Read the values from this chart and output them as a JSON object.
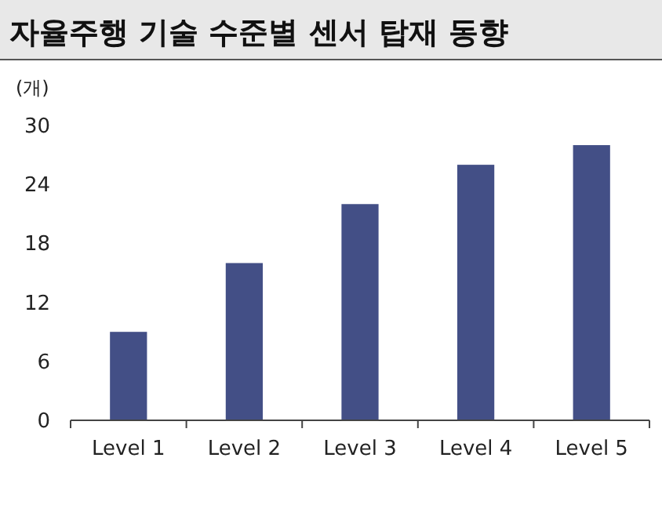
{
  "chart_data": {
    "type": "bar",
    "title": "자율주행 기술 수준별 센서 탑재 동향",
    "ylabel": "(개)",
    "categories": [
      "Level 1",
      "Level 2",
      "Level 3",
      "Level 4",
      "Level 5"
    ],
    "values": [
      9,
      16,
      22,
      26,
      28
    ],
    "color": "#434f86",
    "ylim": [
      0,
      30
    ],
    "yticks": [
      0,
      6,
      12,
      18,
      24,
      30
    ]
  }
}
